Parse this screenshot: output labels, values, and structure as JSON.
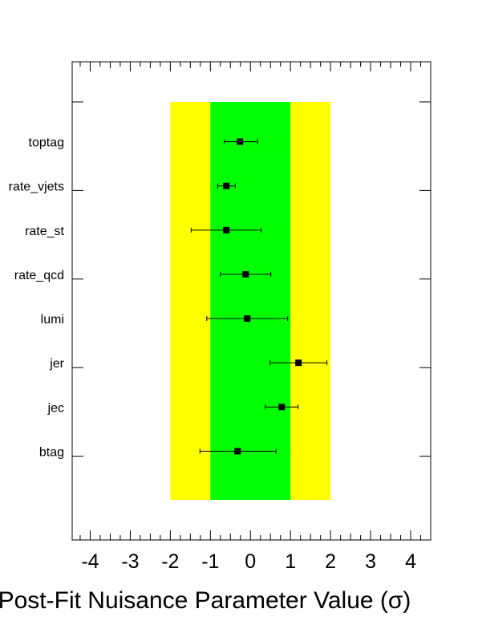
{
  "chart_data": {
    "type": "scatter",
    "title": "",
    "xlabel": "Post-Fit Nuisance Parameter Value (σ)",
    "ylabel": "",
    "xlim": [
      -4.45,
      4.5
    ],
    "x_ticks": [
      -4,
      -3,
      -2,
      -1,
      0,
      1,
      2,
      3,
      4
    ],
    "x_tick_labels": [
      "-4",
      "-3",
      "-2",
      "-1",
      "0",
      "1",
      "2",
      "3",
      "4"
    ],
    "bands": [
      {
        "name": "2 sigma",
        "range": [
          -2,
          2
        ],
        "color": "#ffff00"
      },
      {
        "name": "1 sigma",
        "range": [
          -1,
          1
        ],
        "color": "#00ff00"
      }
    ],
    "categories": [
      "toptag",
      "rate_vjets",
      "rate_st",
      "rate_qcd",
      "lumi",
      "jer",
      "jec",
      "btag"
    ],
    "points": [
      {
        "label": "toptag",
        "value": -0.26,
        "err_low": -0.65,
        "err_high": 0.18
      },
      {
        "label": "rate_vjets",
        "value": -0.6,
        "err_low": -0.82,
        "err_high": -0.38
      },
      {
        "label": "rate_st",
        "value": -0.6,
        "err_low": -1.48,
        "err_high": 0.27
      },
      {
        "label": "rate_qcd",
        "value": -0.12,
        "err_low": -0.75,
        "err_high": 0.51
      },
      {
        "label": "lumi",
        "value": -0.08,
        "err_low": -1.09,
        "err_high": 0.93
      },
      {
        "label": "jer",
        "value": 1.2,
        "err_low": 0.49,
        "err_high": 1.91
      },
      {
        "label": "jec",
        "value": 0.78,
        "err_low": 0.37,
        "err_high": 1.19
      },
      {
        "label": "btag",
        "value": -0.32,
        "err_low": -1.26,
        "err_high": 0.64
      }
    ],
    "grid": false,
    "legend": "none"
  }
}
